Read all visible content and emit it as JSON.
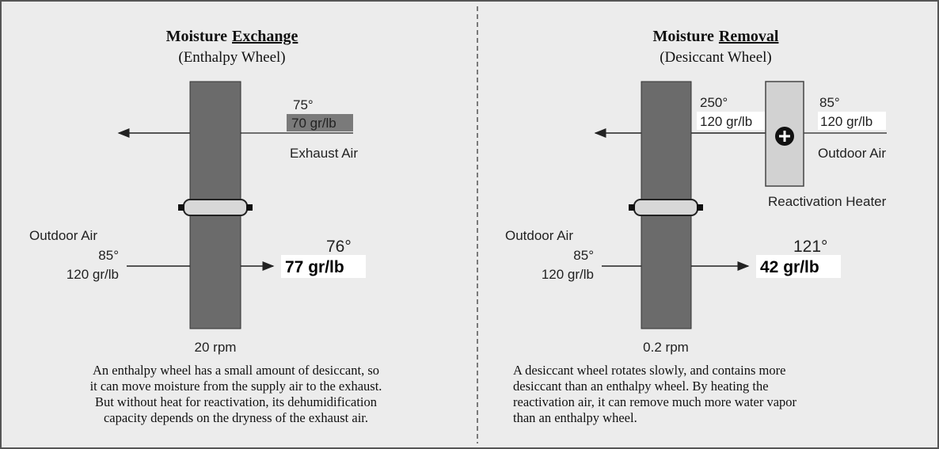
{
  "left": {
    "title": "Moisture",
    "title_emphasis": "Exchange",
    "subtitle": "(Enthalpy Wheel)",
    "exhaust_temp": "75°",
    "exhaust_moisture": "70 gr/lb",
    "exhaust_label": "Exhaust Air",
    "outdoor_label": "Outdoor Air",
    "outdoor_temp": "85°",
    "outdoor_moisture": "120 gr/lb",
    "supply_temp": "76°",
    "supply_moisture": "77 gr/lb",
    "speed": "20 rpm",
    "description": [
      "An enthalpy wheel has a small amount of desiccant, so",
      "it can move moisture from the supply air to the exhaust.",
      "But without heat for reactivation, its dehumidification",
      "capacity depends on the dryness of the exhaust air."
    ]
  },
  "right": {
    "title": "Moisture",
    "title_emphasis": "Removal",
    "subtitle": "(Desiccant Wheel)",
    "reactivation_temp": "250°",
    "reactivation_moisture": "120 gr/lb",
    "heater_in_temp": "85°",
    "heater_in_moisture": "120 gr/lb",
    "heater_in_label": "Outdoor Air",
    "heater_label": "Reactivation Heater",
    "outdoor_label": "Outdoor Air",
    "outdoor_temp": "85°",
    "outdoor_moisture": "120 gr/lb",
    "supply_temp": "121°",
    "supply_moisture": "42 gr/lb",
    "speed": "0.2 rpm",
    "description": [
      "A desiccant wheel rotates slowly, and contains more",
      "desiccant than an enthalpy wheel. By heating the",
      "reactivation air, it can remove much more water vapor",
      "than an enthalpy wheel."
    ]
  }
}
